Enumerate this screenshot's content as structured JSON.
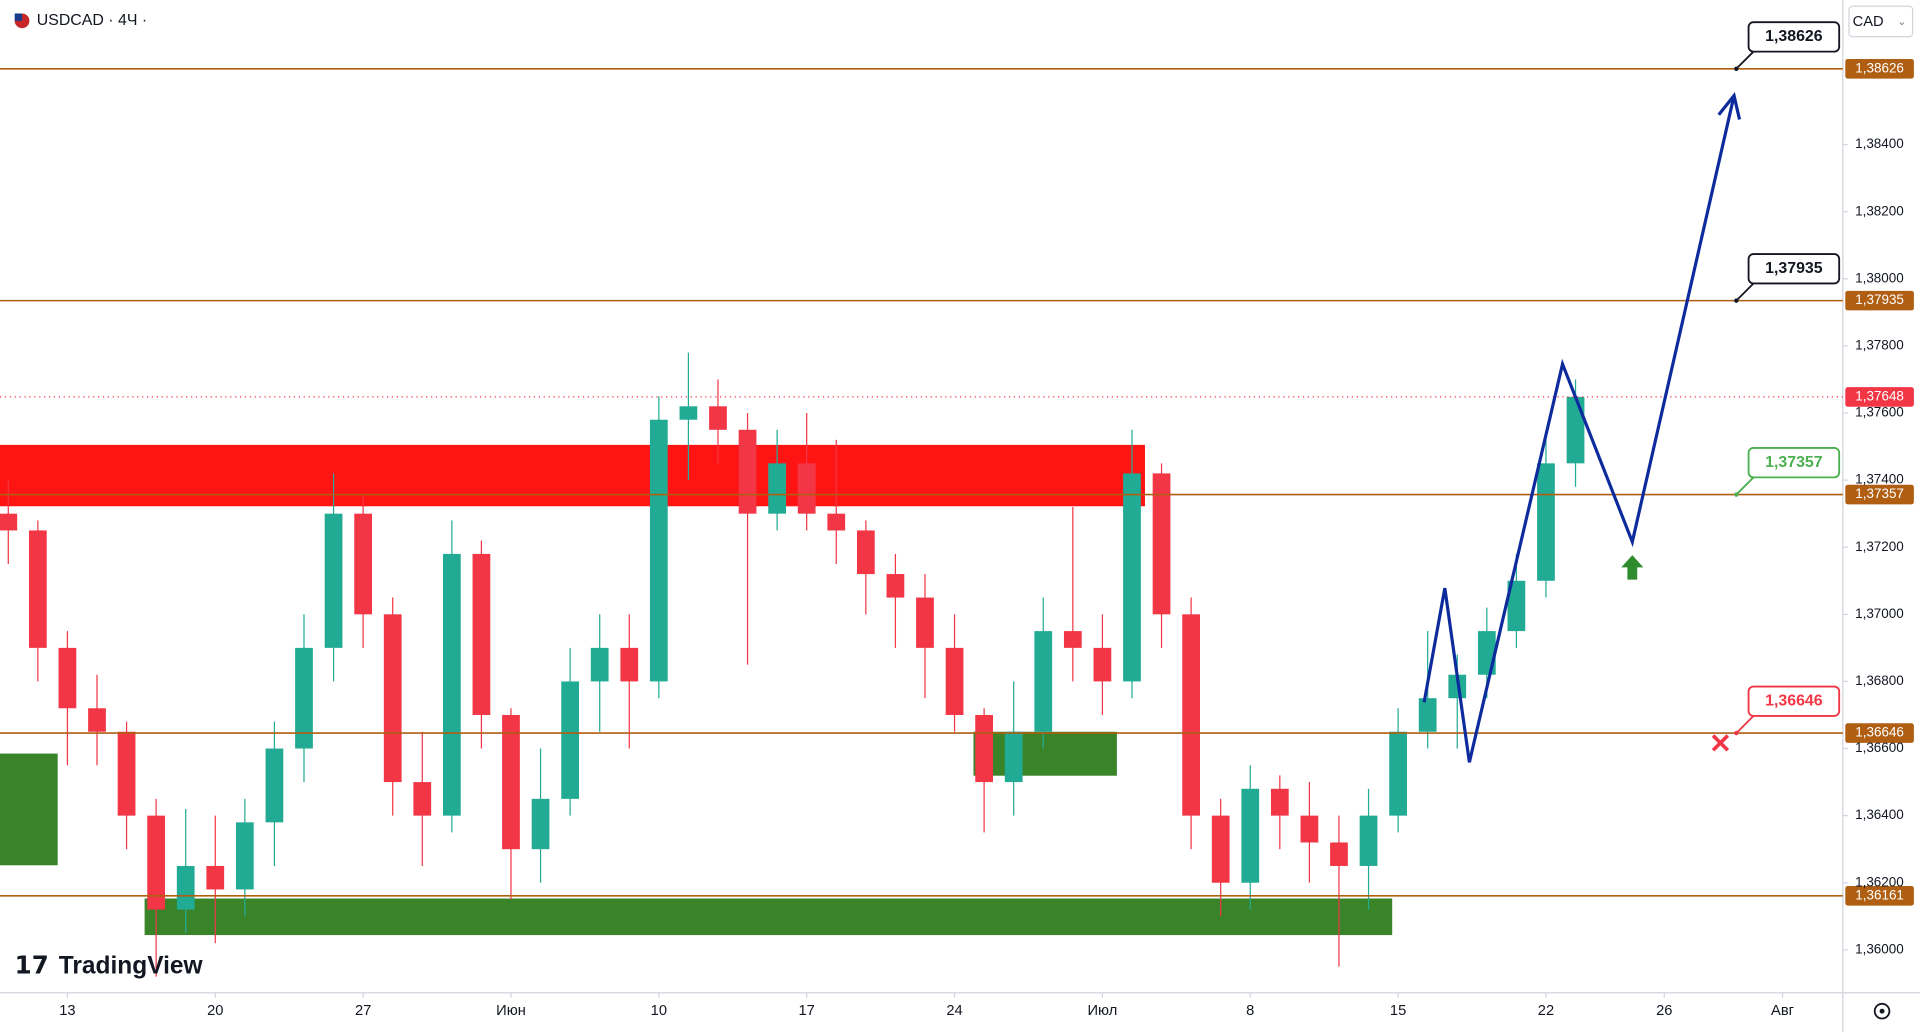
{
  "chart_data": {
    "type": "candlestick",
    "title": "USDCAD · 4Ч ·",
    "currency": "CAD",
    "logo": "TradingView",
    "up_color": "#22ab94",
    "down_color": "#f23645",
    "x": [
      -2,
      -1,
      0,
      1,
      2,
      3,
      4,
      5,
      6,
      7,
      8,
      9,
      10,
      11,
      12,
      13,
      14,
      15,
      16,
      17,
      18,
      19,
      20,
      21,
      22,
      23,
      24,
      25,
      26,
      27,
      28,
      29,
      30,
      31,
      32,
      33,
      34,
      35,
      36,
      37,
      38,
      39,
      40,
      41,
      42,
      43,
      44,
      45,
      46,
      47,
      48,
      49,
      50,
      51
    ],
    "open": [
      1.373,
      1.3725,
      1.369,
      1.3672,
      1.3665,
      1.364,
      1.3612,
      1.3625,
      1.3618,
      1.3638,
      1.366,
      1.369,
      1.373,
      1.37,
      1.365,
      1.364,
      1.3718,
      1.367,
      1.363,
      1.3645,
      1.368,
      1.369,
      1.368,
      1.3758,
      1.3762,
      1.3755,
      1.373,
      1.3745,
      1.373,
      1.3725,
      1.3712,
      1.3705,
      1.369,
      1.367,
      1.365,
      1.3665,
      1.3695,
      1.369,
      1.368,
      1.3742,
      1.37,
      1.364,
      1.362,
      1.3648,
      1.364,
      1.3632,
      1.3625,
      1.364,
      1.3665,
      1.3675,
      1.3682,
      1.3695,
      1.371,
      1.3745
    ],
    "high": [
      1.374,
      1.3728,
      1.3695,
      1.3682,
      1.3668,
      1.3645,
      1.3642,
      1.364,
      1.3645,
      1.3668,
      1.37,
      1.3742,
      1.3735,
      1.3705,
      1.3665,
      1.3728,
      1.3722,
      1.3672,
      1.366,
      1.369,
      1.37,
      1.37,
      1.3765,
      1.3778,
      1.377,
      1.376,
      1.3755,
      1.376,
      1.3752,
      1.3728,
      1.3718,
      1.3712,
      1.37,
      1.3672,
      1.368,
      1.3705,
      1.3732,
      1.37,
      1.3755,
      1.3745,
      1.3705,
      1.3645,
      1.3655,
      1.3652,
      1.365,
      1.364,
      1.3648,
      1.3672,
      1.3695,
      1.3688,
      1.3702,
      1.3718,
      1.3752,
      1.377
    ],
    "low": [
      1.3715,
      1.368,
      1.3655,
      1.3655,
      1.363,
      1.3592,
      1.3605,
      1.3602,
      1.361,
      1.3625,
      1.365,
      1.368,
      1.369,
      1.364,
      1.3625,
      1.3635,
      1.366,
      1.3615,
      1.362,
      1.364,
      1.3665,
      1.366,
      1.3675,
      1.374,
      1.3745,
      1.3685,
      1.3725,
      1.3725,
      1.3715,
      1.37,
      1.369,
      1.3675,
      1.3665,
      1.3635,
      1.364,
      1.366,
      1.368,
      1.367,
      1.3675,
      1.369,
      1.363,
      1.361,
      1.3612,
      1.363,
      1.362,
      1.3595,
      1.3612,
      1.3635,
      1.366,
      1.366,
      1.3675,
      1.369,
      1.3705,
      1.3738
    ],
    "close": [
      1.3725,
      1.369,
      1.3672,
      1.3665,
      1.364,
      1.3612,
      1.3625,
      1.3618,
      1.3638,
      1.366,
      1.369,
      1.373,
      1.37,
      1.365,
      1.364,
      1.3718,
      1.367,
      1.363,
      1.3645,
      1.368,
      1.369,
      1.368,
      1.3758,
      1.3762,
      1.3755,
      1.373,
      1.3745,
      1.373,
      1.3725,
      1.3712,
      1.3705,
      1.369,
      1.367,
      1.365,
      1.3665,
      1.3695,
      1.369,
      1.368,
      1.3742,
      1.37,
      1.364,
      1.362,
      1.3648,
      1.364,
      1.3632,
      1.3625,
      1.364,
      1.3665,
      1.3675,
      1.3682,
      1.3695,
      1.371,
      1.3745,
      1.37648
    ],
    "xlim": [
      -2.28,
      60.04
    ],
    "ylim": [
      1.35872,
      1.38831
    ],
    "yticks": [
      {
        "value": 1.36,
        "label": "1,36000"
      },
      {
        "value": 1.362,
        "label": "1,36200"
      },
      {
        "value": 1.364,
        "label": "1,36400"
      },
      {
        "value": 1.366,
        "label": "1,36600"
      },
      {
        "value": 1.368,
        "label": "1,36800"
      },
      {
        "value": 1.37,
        "label": "1,37000"
      },
      {
        "value": 1.372,
        "label": "1,37200"
      },
      {
        "value": 1.374,
        "label": "1,37400"
      },
      {
        "value": 1.376,
        "label": "1,37600"
      },
      {
        "value": 1.378,
        "label": "1,37800"
      },
      {
        "value": 1.38,
        "label": "1,38000"
      },
      {
        "value": 1.382,
        "label": "1,38200"
      },
      {
        "value": 1.384,
        "label": "1,38400"
      }
    ],
    "xticks": [
      {
        "value": 0,
        "label": "13"
      },
      {
        "value": 5,
        "label": "20"
      },
      {
        "value": 10,
        "label": "27"
      },
      {
        "value": 15,
        "label": "Июн"
      },
      {
        "value": 20,
        "label": "10"
      },
      {
        "value": 25,
        "label": "17"
      },
      {
        "value": 30,
        "label": "24"
      },
      {
        "value": 35,
        "label": "Июл"
      },
      {
        "value": 40,
        "label": "8"
      },
      {
        "value": 45,
        "label": "15"
      },
      {
        "value": 50,
        "label": "22"
      },
      {
        "value": 54,
        "label": "26"
      },
      {
        "value": 58,
        "label": "Авг"
      }
    ],
    "levels": [
      {
        "value": 1.38626,
        "label": "1,38626",
        "callout_color": "#131722"
      },
      {
        "value": 1.37935,
        "label": "1,37935",
        "callout_color": "#131722"
      },
      {
        "value": 1.37357,
        "label": "1,37357",
        "callout_color": "#4caf50"
      },
      {
        "value": 1.36646,
        "label": "1,36646",
        "callout_color": "#f23645"
      },
      {
        "value": 1.36161,
        "label": "1,36161"
      }
    ],
    "level_color": "#b05e12",
    "last_price": {
      "value": 1.37648,
      "label": "1,37648",
      "color": "#f23645"
    },
    "zones": [
      {
        "x": [
          -2.28,
          36.44
        ],
        "y": [
          1.37322,
          1.37505
        ],
        "color": "#ff0000"
      },
      {
        "x": [
          -2.28,
          -0.33
        ],
        "y": [
          1.36252,
          1.36585
        ],
        "color": "#2e7d1e"
      },
      {
        "x": [
          30.64,
          35.49
        ],
        "y": [
          1.36519,
          1.3665
        ],
        "color": "#2e7d1e"
      },
      {
        "x": [
          2.61,
          44.8
        ],
        "y": [
          1.36044,
          1.36153
        ],
        "color": "#2e7d1e"
      }
    ],
    "projection": {
      "color": "#0d2b9c",
      "x": [
        45.88,
        46.58,
        47.41,
        50.56,
        52.92,
        56.36
      ],
      "values": [
        1.36738,
        1.37078,
        1.36559,
        1.37746,
        1.37216,
        1.38546
      ]
    },
    "buy_marker": {
      "x": 52.92,
      "value": 1.3714,
      "color": "#2e8b2e"
    },
    "stop_marker": {
      "x": 55.9,
      "value": 1.36646,
      "color": "#f23645"
    }
  }
}
